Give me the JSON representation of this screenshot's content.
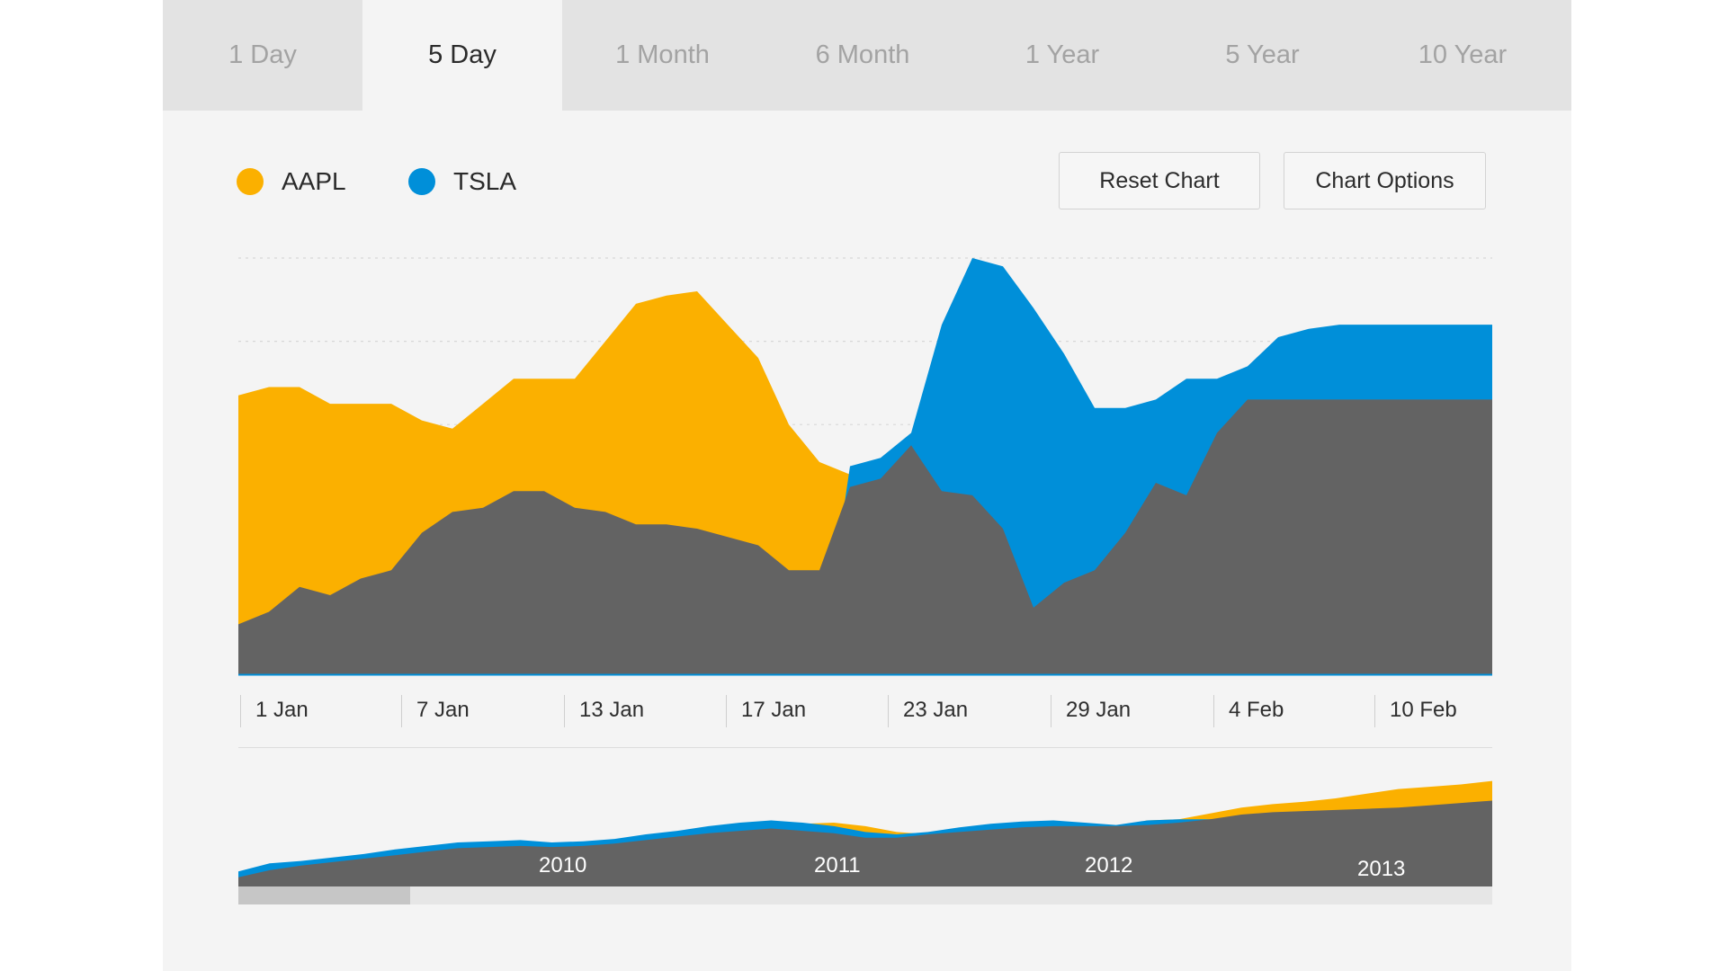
{
  "tabs": [
    {
      "label": "1 Day",
      "active": false
    },
    {
      "label": "5 Day",
      "active": true
    },
    {
      "label": "1 Month",
      "active": false
    },
    {
      "label": "6 Month",
      "active": false
    },
    {
      "label": "1 Year",
      "active": false
    },
    {
      "label": "5 Year",
      "active": false
    },
    {
      "label": "10 Year",
      "active": false
    }
  ],
  "buttons": {
    "reset_label": "Reset Chart",
    "options_label": "Chart Options"
  },
  "colors": {
    "aapl": "#fbb000",
    "tsla": "#008fd9",
    "base": "#636363",
    "grid": "#d7d7d7"
  },
  "chart_data": [
    {
      "type": "area",
      "legend_position": "top-left",
      "grid": true,
      "x_tick_labels": [
        "1 Jan",
        "7 Jan",
        "13 Jan",
        "17 Jan",
        "23 Jan",
        "29 Jan",
        "4 Feb",
        "10 Feb"
      ],
      "ylim": [
        0,
        100
      ],
      "x": [
        0,
        1,
        2,
        3,
        4,
        5,
        6,
        7,
        8,
        9,
        10,
        11,
        12,
        13,
        14,
        15,
        16,
        17,
        18,
        19,
        20,
        21,
        22,
        23,
        24,
        25,
        26,
        27,
        28,
        29,
        30,
        31,
        32,
        33,
        34,
        35,
        36,
        37,
        38,
        39,
        40,
        41
      ],
      "series": [
        {
          "name": "AAPL",
          "values": [
            67,
            69,
            69,
            65,
            65,
            65,
            61,
            59,
            65,
            71,
            71,
            71,
            80,
            89,
            91,
            92,
            84,
            76,
            60,
            51,
            48,
            50,
            0,
            0,
            0,
            0,
            0,
            0,
            0,
            0,
            0,
            0,
            0,
            0,
            0,
            0,
            0,
            0,
            0,
            0,
            0,
            0
          ]
        },
        {
          "name": "TSLA",
          "values": [
            0,
            0,
            0,
            0,
            0,
            0,
            0,
            0,
            0,
            0,
            0,
            0,
            0,
            0,
            0,
            0,
            0,
            0,
            0,
            0,
            50,
            52,
            58,
            84,
            100,
            98,
            88,
            77,
            64,
            64,
            66,
            71,
            71,
            74,
            81,
            83,
            84,
            84,
            84,
            84,
            84,
            84
          ]
        },
        {
          "name": "",
          "values": [
            12,
            15,
            21,
            19,
            23,
            25,
            34,
            39,
            40,
            44,
            44,
            40,
            39,
            36,
            36,
            35,
            33,
            31,
            25,
            25,
            45,
            47,
            55,
            44,
            43,
            35,
            16,
            22,
            25,
            34,
            46,
            43,
            58,
            66,
            66,
            66,
            66,
            66,
            66,
            66,
            66,
            66
          ]
        }
      ]
    },
    {
      "type": "area",
      "x_tick_labels": [
        "2010",
        "2011",
        "2012",
        "2013"
      ],
      "ylim": [
        0,
        100
      ],
      "x": [
        0,
        1,
        2,
        3,
        4,
        5,
        6,
        7,
        8,
        9,
        10,
        11,
        12,
        13,
        14,
        15,
        16,
        17,
        18,
        19,
        20,
        21,
        22,
        23,
        24,
        25,
        26,
        27,
        28,
        29,
        30,
        31,
        32,
        33,
        34,
        35,
        36,
        37,
        38,
        39,
        40
      ],
      "series": [
        {
          "name": "AAPL",
          "values": [
            12,
            18,
            20,
            21,
            23,
            27,
            29,
            31,
            33,
            35,
            36,
            36,
            37,
            38,
            41,
            44,
            47,
            52,
            54,
            55,
            52,
            47,
            45,
            46,
            48,
            50,
            52,
            52,
            52,
            57,
            58,
            63,
            68,
            71,
            73,
            76,
            80,
            84,
            86,
            88,
            91
          ]
        },
        {
          "name": "TSLA",
          "values": [
            13,
            20,
            22,
            25,
            28,
            32,
            35,
            38,
            39,
            40,
            38,
            39,
            41,
            45,
            48,
            52,
            55,
            57,
            55,
            52,
            47,
            45,
            47,
            51,
            54,
            56,
            57,
            55,
            53,
            57,
            58,
            58,
            59,
            59,
            60,
            62,
            62,
            63,
            62,
            62,
            61
          ]
        },
        {
          "name": "",
          "values": [
            8,
            14,
            18,
            21,
            24,
            27,
            30,
            33,
            34,
            35,
            34,
            35,
            37,
            40,
            43,
            46,
            48,
            50,
            48,
            46,
            42,
            42,
            45,
            47,
            49,
            51,
            52,
            52,
            52,
            53,
            55,
            58,
            62,
            64,
            65,
            66,
            67,
            68,
            70,
            72,
            74
          ]
        }
      ]
    }
  ]
}
